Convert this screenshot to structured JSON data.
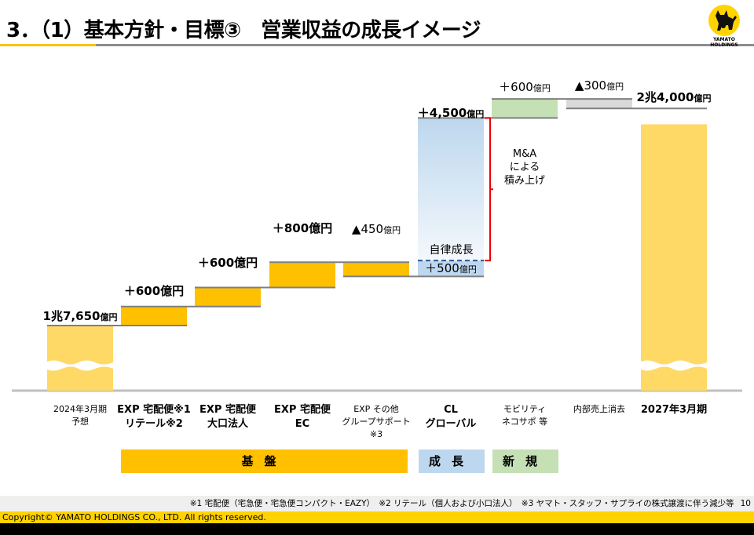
{
  "header": {
    "title": "3．（1）基本方針・目標③　営業収益の成長イメージ",
    "logo_text": [
      "YAMATO",
      "HOLDINGS"
    ]
  },
  "chart_data": {
    "type": "waterfall",
    "unit": "億円",
    "categories": [
      "2024年3月期 予想",
      "EXP 宅配便※1 リテール※2",
      "EXP 宅配便 大口法人",
      "EXP 宅配便 EC",
      "EXP その他 グループサポート※3",
      "CL グローバル (自律成長)",
      "CL グローバル (M&Aによる積み上げ)",
      "モビリティ ネコサポ 等",
      "内部売上消去",
      "2027年3月期"
    ],
    "values": [
      17650,
      600,
      600,
      800,
      -450,
      500,
      4500,
      600,
      -300,
      24000
    ],
    "kinds": [
      "total",
      "delta",
      "delta",
      "delta",
      "delta",
      "delta",
      "delta",
      "delta",
      "delta",
      "total"
    ],
    "colors": [
      "#FFD966",
      "#FFC000",
      "#FFC000",
      "#FFC000",
      "#FFC000",
      "#BDD7EE",
      "gradient-blue",
      "#C5E0B4",
      "#D9D9D9",
      "#FFD966"
    ],
    "labels": [
      {
        "main": "1兆7,650",
        "unit": "億円"
      },
      {
        "main": "＋600億円",
        "unit": ""
      },
      {
        "main": "＋600億円",
        "unit": ""
      },
      {
        "main": "＋800億円",
        "unit": ""
      },
      {
        "main": "▲450",
        "unit": "億円"
      },
      {
        "main": "＋500",
        "unit": "億円"
      },
      {
        "main": "＋4,500",
        "unit": "億円"
      },
      {
        "main": "＋600",
        "unit": "億円"
      },
      {
        "main": "▲300",
        "unit": "億円"
      },
      {
        "main": "2兆4,000",
        "unit": "億円"
      }
    ],
    "category_labels": [
      {
        "l1": "2024年3月期",
        "l2": "予想",
        "l3": ""
      },
      {
        "l1": "EXP 宅配便※1",
        "l2": "リテール※2",
        "l3": ""
      },
      {
        "l1": "EXP 宅配便",
        "l2": "大口法人",
        "l3": ""
      },
      {
        "l1": "EXP 宅配便",
        "l2": "EC",
        "l3": ""
      },
      {
        "l1": "EXP その他",
        "l2": "グループサポート※3",
        "l3": ""
      },
      {
        "l1": "CL",
        "l2": "グローバル",
        "l3": ""
      },
      {
        "l1": "モビリティ",
        "l2": "ネコサポ 等",
        "l3": ""
      },
      {
        "l1": "内部売上消去",
        "l2": "",
        "l3": ""
      },
      {
        "l1": "2027年3月期",
        "l2": "",
        "l3": ""
      }
    ],
    "annotations": {
      "organic": "自律成長",
      "ma": [
        "M&A",
        "による",
        "積み上げ"
      ]
    },
    "groups": [
      {
        "label": "基盤",
        "color": "#FFC000"
      },
      {
        "label": "成長",
        "color": "#BDD7EE"
      },
      {
        "label": "新規",
        "color": "#C5E0B4"
      }
    ]
  },
  "footnotes": "※1 宅配便（宅急便・宅急便コンパクト・EAZY）　※2 リテール（個人および小口法人）　※3 ヤマト・スタッフ・サプライの株式譲渡に伴う減少等",
  "page_number": "10",
  "copyright": "Copyright© YAMATO HOLDINGS CO., LTD. All rights reserved."
}
